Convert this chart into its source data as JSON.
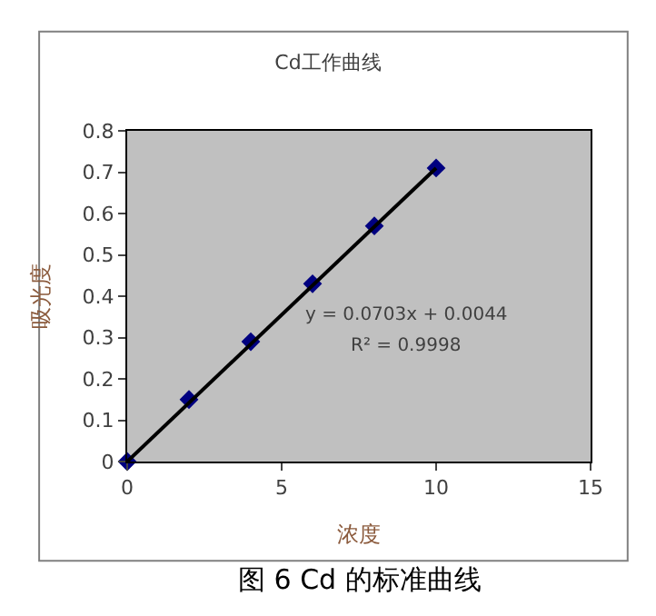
{
  "chart_data": {
    "type": "scatter",
    "title": "Cd工作曲线",
    "xlabel": "浓度",
    "ylabel": "吸光度",
    "xlim": [
      0,
      15
    ],
    "xticks": [
      0,
      5,
      10,
      15
    ],
    "ylim": [
      0,
      0.8
    ],
    "yticks": [
      0,
      {
        "value": 0.1,
        "label": "0.1"
      },
      {
        "value": 0.2,
        "label": "0.2"
      },
      {
        "value": 0.3,
        "label": "0.3"
      },
      {
        "value": 0.4,
        "label": "0.4"
      },
      {
        "value": 0.5,
        "label": "0.5"
      },
      {
        "value": 0.6,
        "label": "0.6"
      },
      {
        "value": 0.7,
        "label": "0.7"
      },
      {
        "value": 0.8,
        "label": "0.8"
      }
    ],
    "grid": false,
    "series": [
      {
        "color": "#000080",
        "marker": "diamond",
        "x": [
          0,
          2,
          4,
          6,
          8,
          10
        ],
        "values": [
          0,
          0.15,
          0.29,
          0.43,
          0.57,
          0.71
        ]
      },
      {
        "type": "line",
        "color": "#000000",
        "marker": "none",
        "line_style": "solid",
        "x": [
          0,
          10
        ],
        "values": [
          0,
          0.71
        ]
      }
    ],
    "annotations": [
      "y = 0.0703x + 0.0044",
      "R² = 0.9998",
      "图 6 Cd 的标准曲线"
    ]
  }
}
